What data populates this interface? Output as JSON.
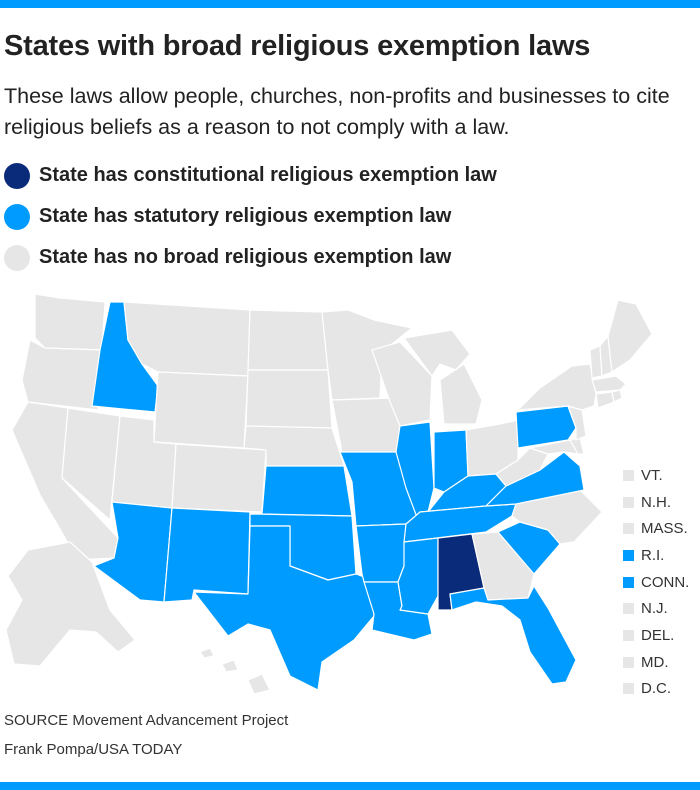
{
  "title": "States with broad religious exemption laws",
  "subtitle": "These laws allow people, churches, non-profits and businesses to cite religious beliefs as a reason to not comply with a law.",
  "colors": {
    "constitutional": "#0a2a7a",
    "statutory": "#009bff",
    "none": "#e6e6e6",
    "accent_bar": "#009bff"
  },
  "legend": [
    {
      "key": "constitutional",
      "label": "State has constitutional religious exemption law"
    },
    {
      "key": "statutory",
      "label": "State has statutory religious exemption law"
    },
    {
      "key": "none",
      "label": "State has no broad religious exemption law"
    }
  ],
  "map": {
    "states": {
      "WA": "none",
      "OR": "none",
      "CA": "none",
      "NV": "none",
      "ID": "statutory",
      "MT": "none",
      "WY": "none",
      "UT": "none",
      "AZ": "statutory",
      "CO": "none",
      "NM": "statutory",
      "ND": "none",
      "SD": "none",
      "NE": "none",
      "KS": "statutory",
      "OK": "statutory",
      "TX": "statutory",
      "MN": "none",
      "IA": "none",
      "MO": "statutory",
      "AR": "statutory",
      "LA": "statutory",
      "WI": "none",
      "IL": "statutory",
      "MI": "none",
      "IN": "statutory",
      "OH": "none",
      "KY": "statutory",
      "TN": "statutory",
      "MS": "statutory",
      "AL": "constitutional",
      "GA": "none",
      "FL": "statutory",
      "SC": "statutory",
      "NC": "none",
      "VA": "statutory",
      "WV": "none",
      "PA": "statutory",
      "NY": "none",
      "ME": "none",
      "AK": "none",
      "HI": "none"
    },
    "small_states": [
      {
        "label": "VT.",
        "status": "none"
      },
      {
        "label": "N.H.",
        "status": "none"
      },
      {
        "label": "MASS.",
        "status": "none"
      },
      {
        "label": "R.I.",
        "status": "statutory"
      },
      {
        "label": "CONN.",
        "status": "statutory"
      },
      {
        "label": "N.J.",
        "status": "none"
      },
      {
        "label": "DEL.",
        "status": "none"
      },
      {
        "label": "MD.",
        "status": "none"
      },
      {
        "label": "D.C.",
        "status": "none"
      }
    ]
  },
  "source": "SOURCE Movement Advancement Project",
  "credit": "Frank Pompa/USA TODAY"
}
